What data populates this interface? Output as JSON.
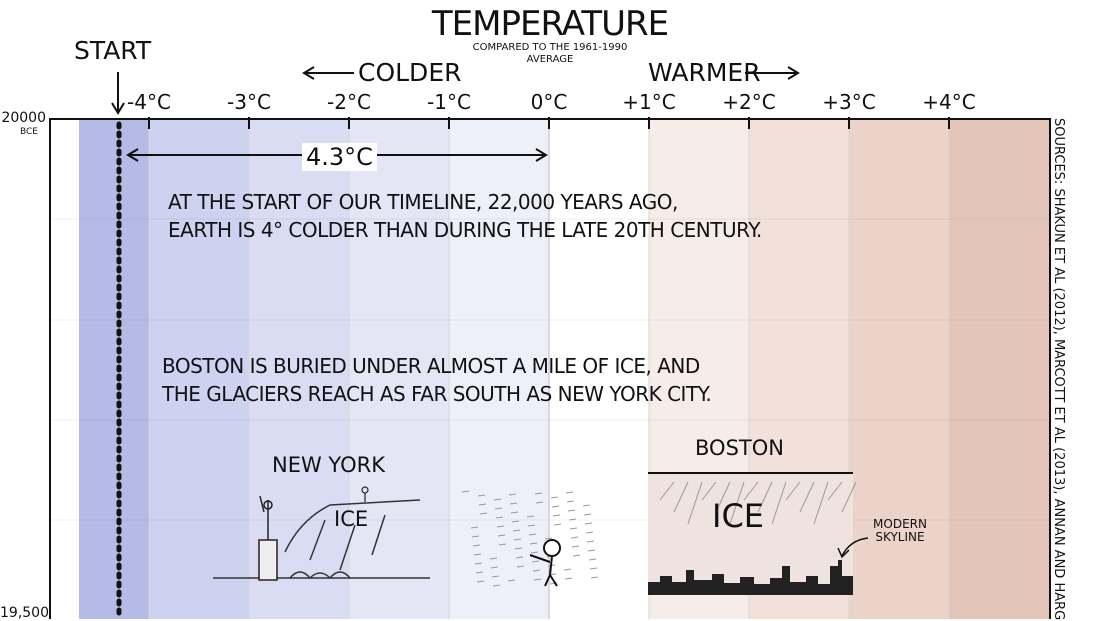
{
  "chart_data": {
    "type": "heatmap",
    "title": "TEMPERATURE",
    "subtitle": "COMPARED TO THE 1961-1990 AVERAGE",
    "x_ticks": [
      "-4°C",
      "-3°C",
      "-2°C",
      "-1°C",
      "0°C",
      "+1°C",
      "+2°C",
      "+3°C",
      "+4°C"
    ],
    "x_tick_values": [
      -4,
      -3,
      -2,
      -1,
      0,
      1,
      2,
      3,
      4
    ],
    "xlim": [
      -4.7,
      5.0
    ],
    "y_ticks": [
      "20000",
      "19,500"
    ],
    "y_era": "BCE",
    "start_label": "START",
    "start_temperature": -4.3,
    "difference_label": "4.3°C",
    "direction_labels": {
      "colder": "COLDER",
      "warmer": "WARMER"
    },
    "band_colors": {
      "-4.7": "#b4bbe6",
      "-4": "#cdd2f0",
      "-3": "#d9dcf2",
      "-2": "#e4e6f5",
      "-1": "#eef0f9",
      "0": "#ffffff",
      "1": "#f6ece9",
      "2": "#f2e0da",
      "3": "#ebd3c9",
      "4": "#e3c6b8"
    },
    "sources": "SOURCES: SHAKUN ET AL (2012), MARCOTT ET AL (2013), ANNAN AND HARG"
  },
  "notes": {
    "line1": "AT THE START OF OUR TIMELINE, 22,000 YEARS AGO,",
    "line2": "EARTH IS 4° COLDER THAN DURING THE LATE 20TH CENTURY.",
    "line3": "BOSTON IS BURIED UNDER ALMOST A MILE OF ICE, AND",
    "line4": "THE GLACIERS REACH AS FAR SOUTH AS NEW YORK CITY."
  },
  "scenes": {
    "new_york": "NEW YORK",
    "ice_ny": "ICE",
    "boston": "BOSTON",
    "ice_boston": "ICE",
    "modern_skyline": "MODERN SKYLINE"
  }
}
